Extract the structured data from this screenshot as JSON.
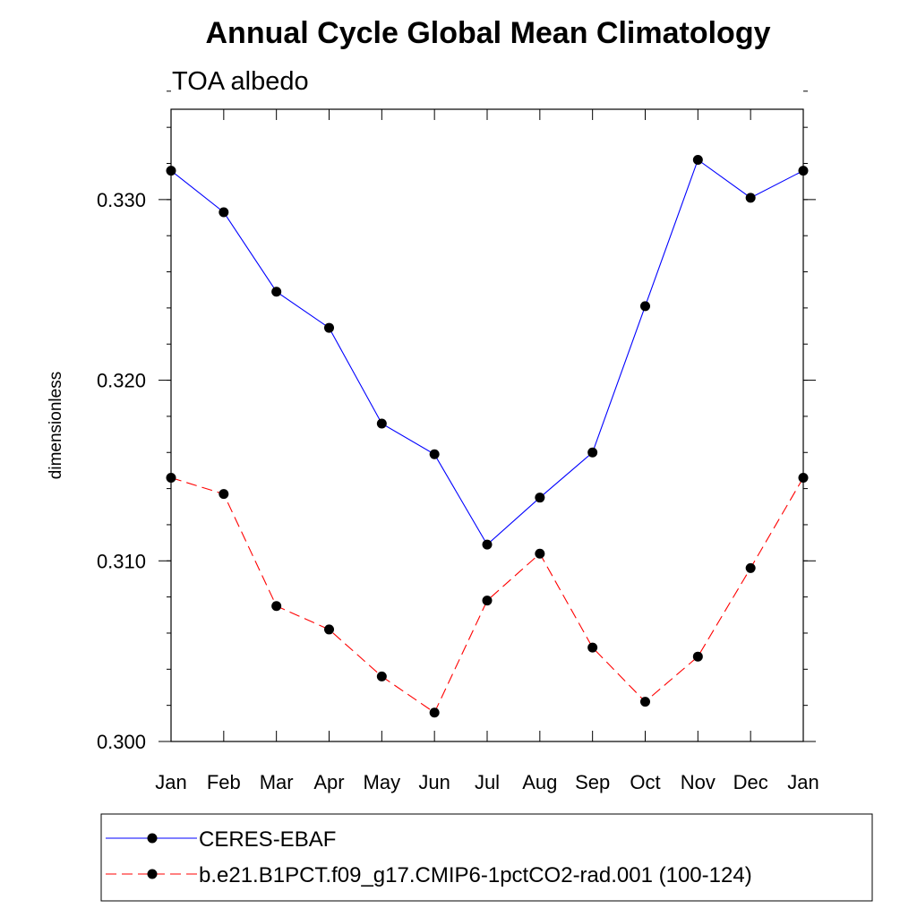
{
  "chart_data": {
    "type": "line",
    "title": "Annual Cycle Global Mean Climatology",
    "subtitle": "TOA albedo",
    "ylabel": "dimensionless",
    "xlabel": "",
    "categories": [
      "Jan",
      "Feb",
      "Mar",
      "Apr",
      "May",
      "Jun",
      "Jul",
      "Aug",
      "Sep",
      "Oct",
      "Nov",
      "Dec",
      "Jan"
    ],
    "ylim": [
      0.3,
      0.335
    ],
    "yticks": [
      0.3,
      0.31,
      0.32,
      0.33
    ],
    "ytick_labels": [
      "0.300",
      "0.310",
      "0.320",
      "0.330"
    ],
    "yminor_step": 0.002,
    "grid": false,
    "legend_position": "bottom",
    "series": [
      {
        "name": "CERES-EBAF",
        "color": "#0000ff",
        "dash": "solid",
        "marker": "filled-circle",
        "values": [
          0.3316,
          0.3293,
          0.3249,
          0.3229,
          0.3176,
          0.3159,
          0.3109,
          0.3135,
          0.316,
          0.3241,
          0.3322,
          0.3301,
          0.3316
        ]
      },
      {
        "name": "b.e21.B1PCT.f09_g17.CMIP6-1pctCO2-rad.001 (100-124)",
        "color": "#ff0000",
        "dash": "dashed",
        "marker": "filled-circle",
        "values": [
          0.3146,
          0.3137,
          0.3075,
          0.3062,
          0.3036,
          0.3016,
          0.3078,
          0.3104,
          0.3052,
          0.3022,
          0.3047,
          0.3096,
          0.3146
        ]
      }
    ]
  }
}
